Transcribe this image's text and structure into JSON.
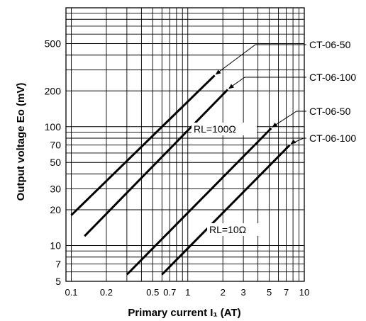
{
  "chart_data": {
    "type": "line",
    "xlabel": "Primary current I₁ (AT)",
    "ylabel": "Output voltage Eo (mV)",
    "x_scale": "log",
    "y_scale": "log",
    "xlim": [
      0.09,
      10
    ],
    "ylim": [
      5,
      1000
    ],
    "grid": true,
    "x_ticks": [
      {
        "value": 0.1,
        "label": "0.1"
      },
      {
        "value": 0.2,
        "label": "0.2"
      },
      {
        "value": 0.5,
        "label": "0.5"
      },
      {
        "value": 0.7,
        "label": "0.7"
      },
      {
        "value": 1,
        "label": "1"
      },
      {
        "value": 2,
        "label": "2"
      },
      {
        "value": 3,
        "label": "3"
      },
      {
        "value": 5,
        "label": "5"
      },
      {
        "value": 7,
        "label": "7"
      },
      {
        "value": 10,
        "label": "10"
      }
    ],
    "x_grid_values": [
      0.1,
      0.2,
      0.3,
      0.4,
      0.5,
      0.6,
      0.7,
      0.8,
      0.9,
      1,
      2,
      3,
      4,
      5,
      6,
      7,
      8,
      9,
      10
    ],
    "y_ticks": [
      {
        "value": 5,
        "label": "5"
      },
      {
        "value": 7,
        "label": "7"
      },
      {
        "value": 10,
        "label": "10"
      },
      {
        "value": 20,
        "label": "20"
      },
      {
        "value": 30,
        "label": "30"
      },
      {
        "value": 50,
        "label": "50"
      },
      {
        "value": 70,
        "label": "70"
      },
      {
        "value": 100,
        "label": "100"
      },
      {
        "value": 200,
        "label": "200"
      },
      {
        "value": 500,
        "label": "500"
      }
    ],
    "y_grid_values": [
      5,
      6,
      7,
      8,
      9,
      10,
      20,
      30,
      40,
      50,
      60,
      70,
      80,
      90,
      100,
      200,
      300,
      400,
      500,
      600,
      700,
      800,
      900,
      1000
    ],
    "series": [
      {
        "name": "CT-06-50",
        "x": [
          0.1,
          1.7
        ],
        "y": [
          18,
          270
        ]
      },
      {
        "name": "CT-06-100",
        "x": [
          0.13,
          2.2
        ],
        "y": [
          12,
          205
        ]
      },
      {
        "name": "CT-06-50",
        "x": [
          0.3,
          5.2
        ],
        "y": [
          5.7,
          97
        ]
      },
      {
        "name": "CT-06-100",
        "x": [
          0.6,
          7.5
        ],
        "y": [
          5.7,
          70
        ]
      }
    ],
    "annotations": [
      {
        "text": "RL=100Ω"
      },
      {
        "text": "RL=10Ω"
      }
    ]
  }
}
